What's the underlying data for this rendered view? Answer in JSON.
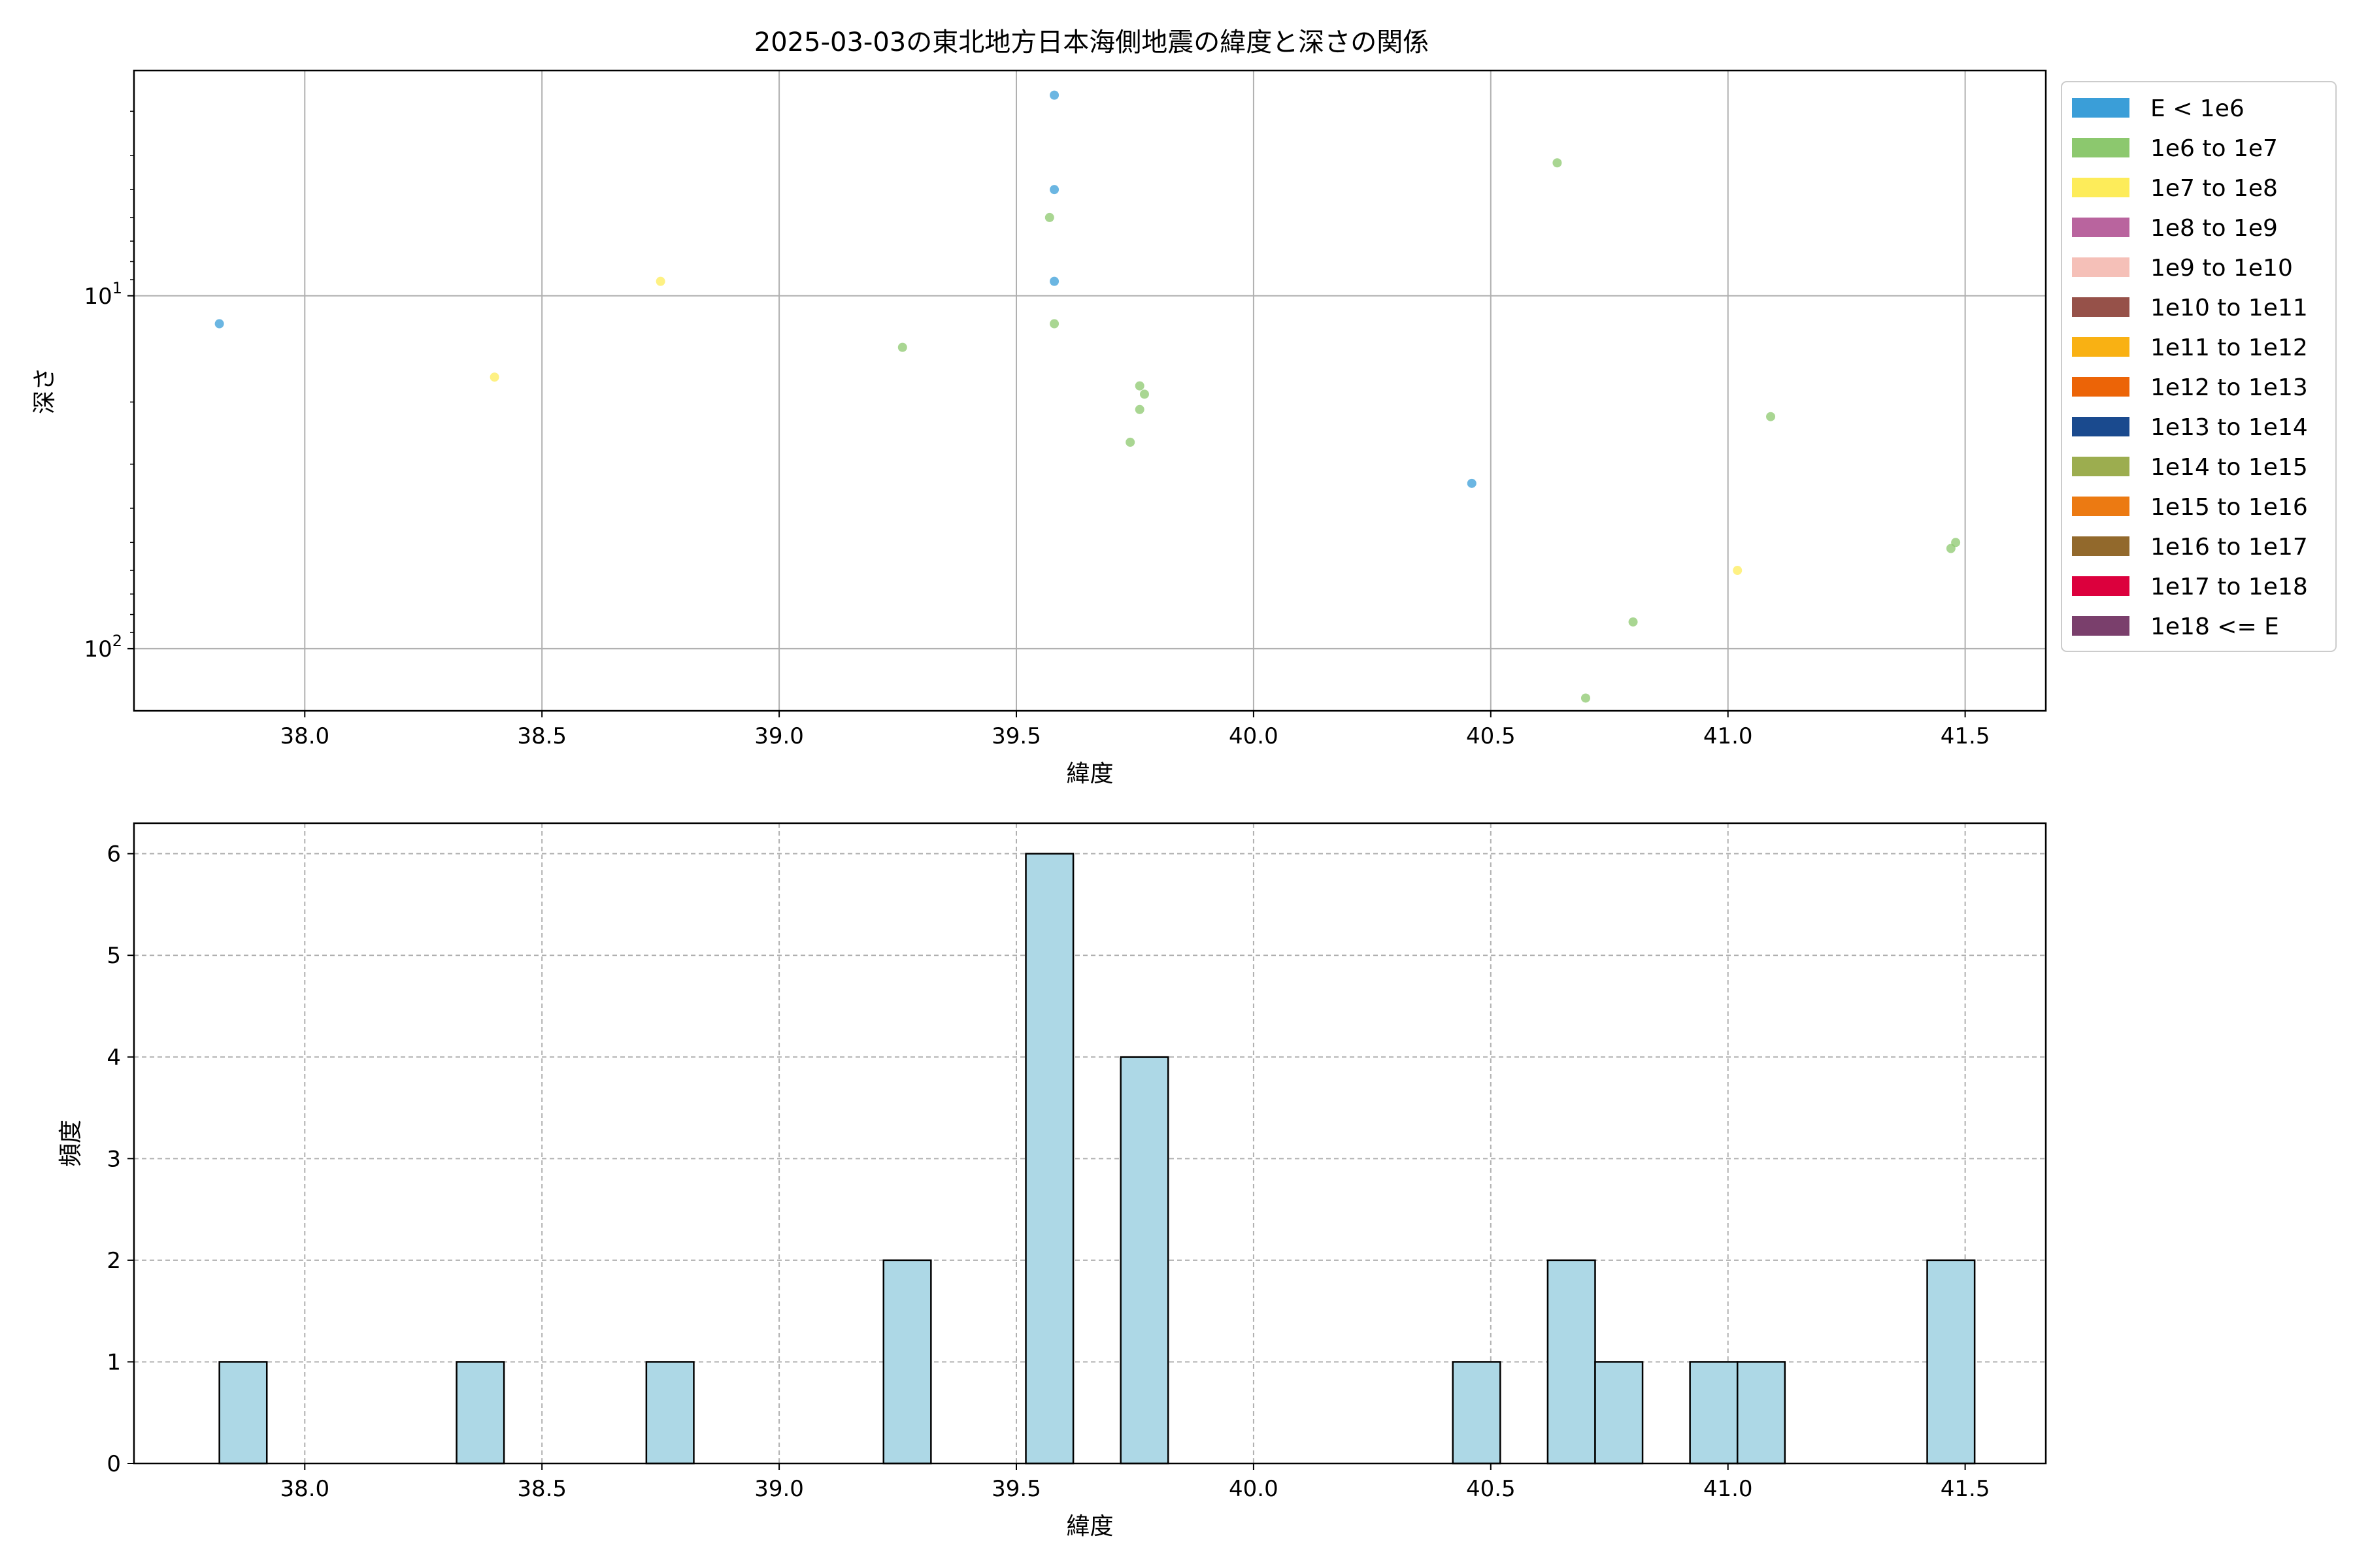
{
  "figure_title": "2025-03-03の東北地方日本海側地震の緯度と深さの関係",
  "chart_data": [
    {
      "type": "scatter",
      "title": "2025-03-03の東北地方日本海側地震の緯度と深さの関係",
      "xlabel": "緯度",
      "ylabel": "深さ",
      "xlim": [
        37.64,
        41.67
      ],
      "ylim_log": [
        150,
        2.3
      ],
      "y_scale": "log",
      "y_inverted": true,
      "x_ticks": [
        38.0,
        38.5,
        39.0,
        39.5,
        40.0,
        40.5,
        41.0,
        41.5
      ],
      "x_tick_labels": [
        "38.0",
        "38.5",
        "39.0",
        "39.5",
        "40.0",
        "40.5",
        "41.0",
        "41.5"
      ],
      "y_ticks": [
        10,
        100
      ],
      "y_tick_labels": [
        {
          "base": "10",
          "exp": "1"
        },
        {
          "base": "10",
          "exp": "2"
        }
      ],
      "grid": true,
      "legend_position": "outside-right-top",
      "legend": [
        {
          "label": "E < 1e6",
          "color": "#3a9ed8"
        },
        {
          "label": "1e6 to 1e7",
          "color": "#8cc86e"
        },
        {
          "label": "1e7 to 1e8",
          "color": "#fdec5a"
        },
        {
          "label": "1e8 to 1e9",
          "color": "#b9649e"
        },
        {
          "label": "1e9 to 1e10",
          "color": "#f5c0b8"
        },
        {
          "label": "1e10 to 1e11",
          "color": "#965149"
        },
        {
          "label": "1e11 to 1e12",
          "color": "#f9b113"
        },
        {
          "label": "1e12 to 1e13",
          "color": "#ec6407"
        },
        {
          "label": "1e13 to 1e14",
          "color": "#1a4a8e"
        },
        {
          "label": "1e14 to 1e15",
          "color": "#9cad4f"
        },
        {
          "label": "1e15 to 1e16",
          "color": "#ec7a12"
        },
        {
          "label": "1e16 to 1e17",
          "color": "#92692c"
        },
        {
          "label": "1e17 to 1e18",
          "color": "#dc003d"
        },
        {
          "label": "1e18 <= E",
          "color": "#7a3f6c"
        }
      ],
      "points": [
        {
          "x": 37.82,
          "y": 12.0,
          "cat": 0
        },
        {
          "x": 38.4,
          "y": 17.0,
          "cat": 2
        },
        {
          "x": 38.75,
          "y": 9.1,
          "cat": 2
        },
        {
          "x": 39.26,
          "y": 14.0,
          "cat": 1
        },
        {
          "x": 39.57,
          "y": 6.0,
          "cat": 1
        },
        {
          "x": 39.58,
          "y": 2.7,
          "cat": 0
        },
        {
          "x": 39.58,
          "y": 5.0,
          "cat": 0
        },
        {
          "x": 39.58,
          "y": 9.1,
          "cat": 0
        },
        {
          "x": 39.58,
          "y": 12.0,
          "cat": 1
        },
        {
          "x": 39.74,
          "y": 26.0,
          "cat": 1
        },
        {
          "x": 39.76,
          "y": 18.0,
          "cat": 1
        },
        {
          "x": 39.76,
          "y": 21.0,
          "cat": 1
        },
        {
          "x": 39.77,
          "y": 19.0,
          "cat": 1
        },
        {
          "x": 40.46,
          "y": 34.0,
          "cat": 0
        },
        {
          "x": 40.64,
          "y": 4.2,
          "cat": 1
        },
        {
          "x": 40.7,
          "y": 138.0,
          "cat": 1
        },
        {
          "x": 40.8,
          "y": 84.0,
          "cat": 1
        },
        {
          "x": 41.02,
          "y": 60.0,
          "cat": 2
        },
        {
          "x": 41.09,
          "y": 22.0,
          "cat": 1
        },
        {
          "x": 41.47,
          "y": 52.0,
          "cat": 1
        },
        {
          "x": 41.48,
          "y": 50.0,
          "cat": 1
        }
      ]
    },
    {
      "type": "bar",
      "title": "",
      "xlabel": "緯度",
      "ylabel": "頻度",
      "xlim": [
        37.64,
        41.67
      ],
      "ylim": [
        0,
        6.3
      ],
      "x_ticks": [
        38.0,
        38.5,
        39.0,
        39.5,
        40.0,
        40.5,
        41.0,
        41.5
      ],
      "x_tick_labels": [
        "38.0",
        "38.5",
        "39.0",
        "39.5",
        "40.0",
        "40.5",
        "41.0",
        "41.5"
      ],
      "y_ticks": [
        0,
        1,
        2,
        3,
        4,
        5,
        6
      ],
      "y_tick_labels": [
        "0",
        "1",
        "2",
        "3",
        "4",
        "5",
        "6"
      ],
      "grid": true,
      "bar_color": "#add8e6",
      "bins": [
        {
          "x0": 37.82,
          "x1": 37.92,
          "count": 1
        },
        {
          "x0": 38.32,
          "x1": 38.42,
          "count": 1
        },
        {
          "x0": 38.72,
          "x1": 38.82,
          "count": 1
        },
        {
          "x0": 39.22,
          "x1": 39.32,
          "count": 2
        },
        {
          "x0": 39.52,
          "x1": 39.62,
          "count": 6
        },
        {
          "x0": 39.72,
          "x1": 39.82,
          "count": 4
        },
        {
          "x0": 40.42,
          "x1": 40.52,
          "count": 1
        },
        {
          "x0": 40.62,
          "x1": 40.72,
          "count": 2
        },
        {
          "x0": 40.72,
          "x1": 40.82,
          "count": 1
        },
        {
          "x0": 40.92,
          "x1": 41.02,
          "count": 1
        },
        {
          "x0": 41.02,
          "x1": 41.12,
          "count": 1
        },
        {
          "x0": 41.42,
          "x1": 41.52,
          "count": 2
        }
      ]
    }
  ]
}
